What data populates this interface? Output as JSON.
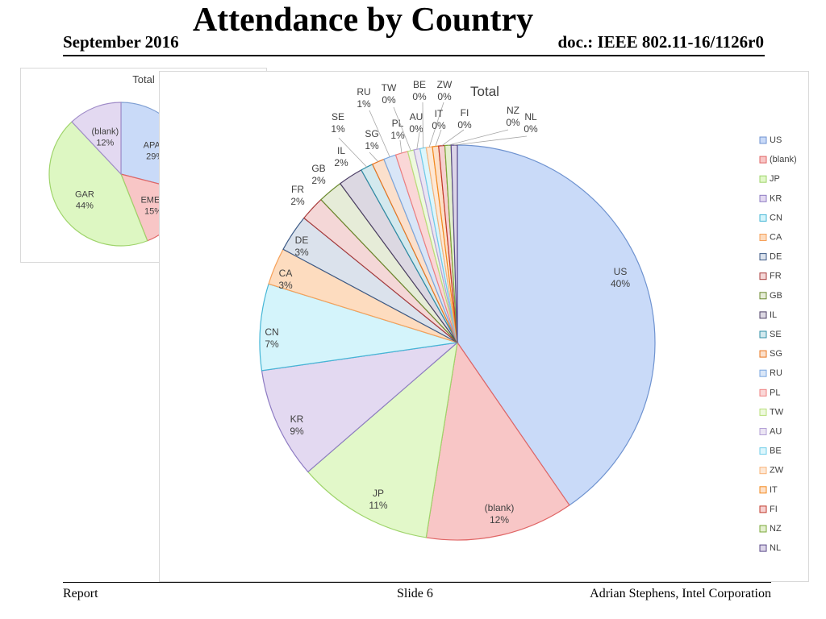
{
  "slide": {
    "title": "Attendance by Country",
    "date": "September 2016",
    "doc": "doc.: IEEE 802.11-16/1126r0",
    "footer_left": "Report",
    "footer_center": "Slide 6",
    "footer_right": "Adrian Stephens, Intel Corporation"
  },
  "chart_data": [
    {
      "type": "pie",
      "title": "Total",
      "legend_position": "right",
      "slices": [
        {
          "label": "APAC",
          "value": 29,
          "display": "29%",
          "color": "#c9daf8",
          "stroke": "#7f9fd3"
        },
        {
          "label": "EMEA",
          "value": 15,
          "display": "15%",
          "color": "#f8c6c6",
          "stroke": "#e06666"
        },
        {
          "label": "GAR",
          "value": 44,
          "display": "44%",
          "color": "#ddf7c2",
          "stroke": "#9fd46b"
        },
        {
          "label": "(blank)",
          "value": 12,
          "display": "12%",
          "color": "#e3d9f1",
          "stroke": "#a08cc8"
        }
      ]
    },
    {
      "type": "pie",
      "title": "Total",
      "legend_position": "right",
      "slices": [
        {
          "label": "US",
          "value": 40,
          "display": "40%",
          "color": "#c9daf8",
          "stroke": "#6f93d0"
        },
        {
          "label": "(blank)",
          "value": 12,
          "display": "12%",
          "color": "#f8c6c6",
          "stroke": "#e06666"
        },
        {
          "label": "JP",
          "value": 11,
          "display": "11%",
          "color": "#e2f8c9",
          "stroke": "#9fd46b"
        },
        {
          "label": "KR",
          "value": 9,
          "display": "9%",
          "color": "#e3d9f1",
          "stroke": "#8e7cc3"
        },
        {
          "label": "CN",
          "value": 7,
          "display": "7%",
          "color": "#d4f4fb",
          "stroke": "#45b6d6"
        },
        {
          "label": "CA",
          "value": 3,
          "display": "3%",
          "color": "#fddcbf",
          "stroke": "#f6a15a"
        },
        {
          "label": "DE",
          "value": 3,
          "display": "3%",
          "color": "#dbe2ec",
          "stroke": "#3c5a86"
        },
        {
          "label": "FR",
          "value": 2,
          "display": "2%",
          "color": "#f4d7d7",
          "stroke": "#a93c3c"
        },
        {
          "label": "GB",
          "value": 2,
          "display": "2%",
          "color": "#e6ecd8",
          "stroke": "#6b8a2f"
        },
        {
          "label": "IL",
          "value": 2,
          "display": "2%",
          "color": "#dcd8e2",
          "stroke": "#4d3f66"
        },
        {
          "label": "SE",
          "value": 1,
          "display": "1%",
          "color": "#d3e9ee",
          "stroke": "#2f8ea6"
        },
        {
          "label": "SG",
          "value": 1,
          "display": "1%",
          "color": "#fbe0cc",
          "stroke": "#e87722"
        },
        {
          "label": "RU",
          "value": 1,
          "display": "1%",
          "color": "#d9e6f7",
          "stroke": "#7aa7e0"
        },
        {
          "label": "PL",
          "value": 1,
          "display": "1%",
          "color": "#fad7d7",
          "stroke": "#ef8080"
        },
        {
          "label": "TW",
          "value": 0.5,
          "display": "0%",
          "color": "#eef9de",
          "stroke": "#b8e07a"
        },
        {
          "label": "AU",
          "value": 0.5,
          "display": "0%",
          "color": "#ebe5f3",
          "stroke": "#b3a0d6"
        },
        {
          "label": "BE",
          "value": 0.5,
          "display": "0%",
          "color": "#ddf6fc",
          "stroke": "#6fcde8"
        },
        {
          "label": "ZW",
          "value": 0.5,
          "display": "0%",
          "color": "#fde8d6",
          "stroke": "#f9b47a"
        },
        {
          "label": "IT",
          "value": 0.5,
          "display": "0%",
          "color": "#fde0c8",
          "stroke": "#f28a1e"
        },
        {
          "label": "FI",
          "value": 0.5,
          "display": "0%",
          "color": "#f6d0d0",
          "stroke": "#c0392b"
        },
        {
          "label": "NZ",
          "value": 0.5,
          "display": "0%",
          "color": "#e4efcf",
          "stroke": "#7aa83a"
        },
        {
          "label": "NL",
          "value": 0.5,
          "display": "0%",
          "color": "#dcd5e8",
          "stroke": "#5b4a8a"
        }
      ]
    }
  ]
}
